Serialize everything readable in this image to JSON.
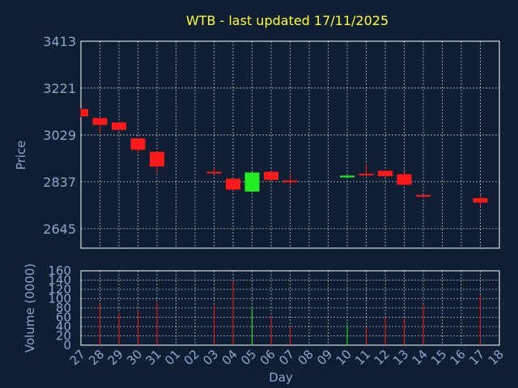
{
  "chart_data": {
    "type": "candlestick",
    "title": "WTB - last updated 17/11/2025",
    "colors": {
      "background": "#0f1f33",
      "frame": "#ffffff",
      "grid": "#ffffff",
      "title": "#ffff33",
      "labels": "#8fa6c8",
      "up": "#22ee22",
      "down": "#ff1a1a"
    },
    "price_panel": {
      "ylabel": "Price",
      "ylim": [
        2565,
        3413
      ],
      "yticks": [
        3413,
        3221,
        3029,
        2837,
        2645
      ]
    },
    "volume_panel": {
      "ylabel": "Volume (0000)",
      "ylim": [
        0,
        160
      ],
      "yticks": [
        0,
        20,
        40,
        60,
        80,
        100,
        120,
        140,
        160
      ]
    },
    "xlabel": "Day",
    "x_tick_labels": [
      "27",
      "28",
      "29",
      "30",
      "31",
      "01",
      "02",
      "03",
      "04",
      "05",
      "06",
      "07",
      "08",
      "09",
      "10",
      "11",
      "12",
      "13",
      "14",
      "15",
      "16",
      "17",
      "18"
    ],
    "candles": [
      {
        "day": "27",
        "open": 3135,
        "close": 3105,
        "high": 3138,
        "low": 3102,
        "volume": 0
      },
      {
        "day": "28",
        "open": 3098,
        "close": 3070,
        "high": 3100,
        "low": 3035,
        "volume": 88
      },
      {
        "day": "29",
        "open": 3080,
        "close": 3050,
        "high": 3082,
        "low": 3046,
        "volume": 70
      },
      {
        "day": "30",
        "open": 3015,
        "close": 2968,
        "high": 3015,
        "low": 2955,
        "volume": 75
      },
      {
        "day": "31",
        "open": 2960,
        "close": 2900,
        "high": 2960,
        "low": 2873,
        "volume": 92
      },
      {
        "day": "03",
        "open": 2878,
        "close": 2872,
        "high": 2894,
        "low": 2868,
        "volume": 85
      },
      {
        "day": "04",
        "open": 2850,
        "close": 2805,
        "high": 2852,
        "low": 2800,
        "volume": 138
      },
      {
        "day": "05",
        "open": 2797,
        "close": 2875,
        "high": 2877,
        "low": 2795,
        "volume": 78
      },
      {
        "day": "06",
        "open": 2878,
        "close": 2845,
        "high": 2880,
        "low": 2842,
        "volume": 62
      },
      {
        "day": "07",
        "open": 2842,
        "close": 2838,
        "high": 2868,
        "low": 2826,
        "volume": 40
      },
      {
        "day": "10",
        "open": 2855,
        "close": 2862,
        "high": 2864,
        "low": 2852,
        "volume": 44
      },
      {
        "day": "11",
        "open": 2870,
        "close": 2866,
        "high": 2910,
        "low": 2860,
        "volume": 37
      },
      {
        "day": "12",
        "open": 2882,
        "close": 2860,
        "high": 2883,
        "low": 2858,
        "volume": 60
      },
      {
        "day": "13",
        "open": 2868,
        "close": 2825,
        "high": 2878,
        "low": 2822,
        "volume": 55
      },
      {
        "day": "14",
        "open": 2783,
        "close": 2776,
        "high": 2785,
        "low": 2772,
        "volume": 85
      },
      {
        "day": "17",
        "open": 2770,
        "close": 2752,
        "high": 2782,
        "low": 2735,
        "volume": 108
      }
    ]
  }
}
